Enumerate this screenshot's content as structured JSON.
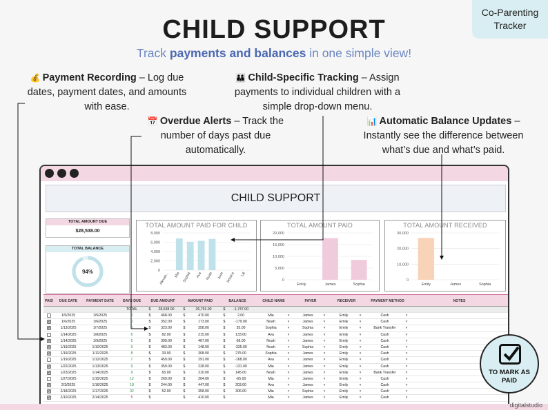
{
  "badge": {
    "line1": "Co-Parenting",
    "line2": "Tracker"
  },
  "hero": {
    "title": "CHILD SUPPORT",
    "subtitle_pre": "Track ",
    "subtitle_bold": "payments and balances",
    "subtitle_post": " in one simple view!"
  },
  "callouts": {
    "payment_recording": {
      "icon": "💰",
      "title": "Payment Recording",
      "text1": " – Log due",
      "text2": "dates, payment dates, and amounts",
      "text3": "with ease."
    },
    "child_specific": {
      "icon": "👪",
      "title": "Child-Specific Tracking",
      "text1": " – Assign",
      "text2": "payments to individual children with a",
      "text3": "simple drop-down menu."
    },
    "overdue": {
      "icon": "📅",
      "title": "Overdue Alerts",
      "text1": " – Track the",
      "text2": "number of days past due",
      "text3": "automatically."
    },
    "balance": {
      "icon": "📊",
      "title": "Automatic Balance Updates",
      "text1": " –",
      "text2": "Instantly see the difference between",
      "text3": "what’s due and what’s paid."
    }
  },
  "sheet": {
    "title": "CHILD SUPPORT",
    "total_due_label": "TOTAL AMOUNT DUE",
    "total_due_value": "$28,538.00",
    "total_balance_label": "TOTAL BALANCE",
    "total_balance_value": "94%",
    "total_balance_fraction": 0.94
  },
  "chart_data": [
    {
      "type": "bar",
      "title": "TOTAL AMOUNT PAID FOR CHILD",
      "categories": [
        "Alexan...",
        "Mia",
        "Sophia",
        "Ava",
        "Noah",
        "Josh",
        "Jessica",
        "Lili"
      ],
      "values": [
        0,
        6800,
        6100,
        6300,
        6700,
        0,
        0,
        0
      ],
      "yticks": [
        "0",
        "2,000",
        "4,000",
        "6,000",
        "8,000"
      ],
      "ylim": [
        0,
        8000
      ],
      "color": "#bfe1ea"
    },
    {
      "type": "bar",
      "title": "TOTAL AMOUNT PAID",
      "categories": [
        "Emily",
        "James",
        "Sophia"
      ],
      "values": [
        0,
        17800,
        8500
      ],
      "yticks": [
        "0",
        "5,000",
        "10,000",
        "15,000",
        "20,000"
      ],
      "ylim": [
        0,
        20000
      ],
      "color": "#f0cbdc"
    },
    {
      "type": "bar",
      "title": "TOTAL AMOUNT RECEIVED",
      "categories": [
        "Emily",
        "James",
        "Sophia"
      ],
      "values": [
        26800,
        0,
        0
      ],
      "yticks": [
        "0",
        "10,000",
        "20,000",
        "30,000"
      ],
      "ylim": [
        0,
        30000
      ],
      "color": "#f9d3b8"
    }
  ],
  "table": {
    "headers": [
      "PAID",
      "DUE DATE",
      "PAYMENT DATE",
      "DAYS DUE",
      "DUE AMOUNT",
      "AMOUNT PAID",
      "BALANCE",
      "CHILD NAME",
      "PAYER",
      "RECEIVER",
      "PAYMENT METHOD",
      "NOTES"
    ],
    "total": {
      "label": "TOTAL",
      "due": "28,538.00",
      "paid": "26,791.00",
      "balance": "-1,747.00"
    },
    "currency": "$",
    "rows": [
      {
        "paid": false,
        "due_date": "1/5/2025",
        "pay_date": "1/5/2025",
        "days": "0",
        "days_color": "green",
        "due": "468.00",
        "amt": "470.00",
        "bal": "2.00",
        "child": "Mia",
        "payer": "James",
        "receiver": "Emily",
        "method": "Cash"
      },
      {
        "paid": true,
        "due_date": "1/6/2025",
        "pay_date": "1/6/2025",
        "days": "0",
        "days_color": "green",
        "due": "352.00",
        "amt": "173.00",
        "bal": "-179.00",
        "child": "Noah",
        "payer": "James",
        "receiver": "Emily",
        "method": "Cash"
      },
      {
        "paid": true,
        "due_date": "1/13/2025",
        "pay_date": "1/7/2025",
        "days": "6",
        "days_color": "green",
        "due": "323.00",
        "amt": "358.00",
        "bal": "35.00",
        "child": "Sophia",
        "payer": "Sophia",
        "receiver": "Emily",
        "method": "Bank Transfer"
      },
      {
        "paid": false,
        "due_date": "1/14/2025",
        "pay_date": "1/8/2025",
        "days": "6",
        "days_color": "green",
        "due": "82.00",
        "amt": "215.00",
        "bal": "133.00",
        "child": "Ava",
        "payer": "James",
        "receiver": "Emily",
        "method": "Cash"
      },
      {
        "paid": true,
        "due_date": "1/14/2025",
        "pay_date": "1/9/2025",
        "days": "5",
        "days_color": "green",
        "due": "399.00",
        "amt": "467.00",
        "bal": "68.00",
        "child": "Noah",
        "payer": "James",
        "receiver": "Emily",
        "method": "Cash"
      },
      {
        "paid": true,
        "due_date": "1/19/2025",
        "pay_date": "1/10/2025",
        "days": "9",
        "days_color": "green",
        "due": "483.00",
        "amt": "148.00",
        "bal": "-335.00",
        "child": "Noah",
        "payer": "Sophia",
        "receiver": "Emily",
        "method": "Cash"
      },
      {
        "paid": true,
        "due_date": "1/19/2025",
        "pay_date": "1/11/2025",
        "days": "8",
        "days_color": "green",
        "due": "33.00",
        "amt": "308.00",
        "bal": "275.00",
        "child": "Sophia",
        "payer": "James",
        "receiver": "Emily",
        "method": "Cash"
      },
      {
        "paid": false,
        "due_date": "1/19/2025",
        "pay_date": "1/12/2025",
        "days": "7",
        "days_color": "green",
        "due": "459.00",
        "amt": "291.00",
        "bal": "-168.00",
        "child": "Ava",
        "payer": "James",
        "receiver": "Emily",
        "method": "Cash"
      },
      {
        "paid": true,
        "due_date": "1/22/2025",
        "pay_date": "1/13/2025",
        "days": "9",
        "days_color": "green",
        "due": "359.00",
        "amt": "228.00",
        "bal": "-131.00",
        "child": "Mia",
        "payer": "James",
        "receiver": "Emily",
        "method": "Cash"
      },
      {
        "paid": true,
        "due_date": "1/23/2025",
        "pay_date": "1/14/2025",
        "days": "9",
        "days_color": "green",
        "due": "65.00",
        "amt": "210.00",
        "bal": "145.00",
        "child": "Noah",
        "payer": "James",
        "receiver": "Emily",
        "method": "Bank Transfer"
      },
      {
        "paid": false,
        "due_date": "1/27/2025",
        "pay_date": "1/15/2025",
        "days": "12",
        "days_color": "green",
        "due": "269.00",
        "amt": "204.00",
        "bal": "-65.00",
        "child": "Mia",
        "payer": "James",
        "receiver": "Emily",
        "method": "Cash"
      },
      {
        "paid": true,
        "due_date": "2/3/2025",
        "pay_date": "1/16/2025",
        "days": "18",
        "days_color": "green",
        "due": "244.00",
        "amt": "447.00",
        "bal": "203.00",
        "child": "Ava",
        "payer": "James",
        "receiver": "Emily",
        "method": "Cash"
      },
      {
        "paid": true,
        "due_date": "2/18/2025",
        "pay_date": "1/17/2025",
        "days": "32",
        "days_color": "green",
        "due": "52.00",
        "amt": "358.00",
        "bal": "306.00",
        "child": "Mia",
        "payer": "Sophia",
        "receiver": "Emily",
        "method": "Cash"
      },
      {
        "paid": true,
        "due_date": "2/10/2025",
        "pay_date": "2/14/2025",
        "days": "5",
        "days_color": "red",
        "due": "",
        "amt": "410.00",
        "bal": "",
        "child": "Mia",
        "payer": "James",
        "receiver": "Emily",
        "method": "Cash"
      }
    ]
  },
  "mark_badge": {
    "line1": "TO MARK AS",
    "line2": "PAID"
  },
  "footer": {
    "brand": "digitalstudio"
  }
}
